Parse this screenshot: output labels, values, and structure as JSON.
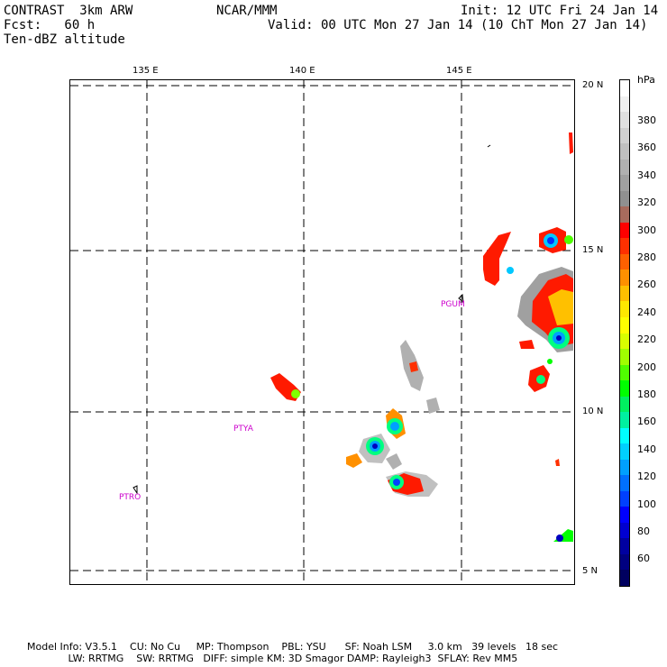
{
  "header": {
    "model_line": "CONTRAST  3km ARW",
    "org": "NCAR/MMM",
    "init": "Init: 12 UTC Fri 24 Jan 14",
    "fcst": "Fcst:   60 h",
    "valid": "Valid: 00 UTC Mon 27 Jan 14 (10 ChT Mon 27 Jan 14)",
    "field": "Ten-dBZ altitude"
  },
  "map": {
    "lon_labels": [
      "135 E",
      "140 E",
      "145 E"
    ],
    "lat_labels": [
      "20 N",
      "15 N",
      "10 N",
      "5 N"
    ],
    "lon_values": [
      135,
      140,
      145
    ],
    "lat_values": [
      20,
      15,
      10,
      5
    ],
    "stations": [
      {
        "name": "PGUM",
        "lon": 144.8,
        "lat": 13.5
      },
      {
        "name": "PTYA",
        "lon": 138.1,
        "lat": 9.5
      },
      {
        "name": "PTRO",
        "lon": 134.5,
        "lat": 7.4
      }
    ],
    "echo_cells": [
      {
        "lon": 148.6,
        "lat": 18.4,
        "peak_hPa": 280,
        "label": "north-edge cell"
      },
      {
        "lon": 146.3,
        "lat": 14.7,
        "peak_hPa": 300,
        "label": "band near 15N"
      },
      {
        "lon": 147.8,
        "lat": 15.2,
        "peak_hPa": 140,
        "label": "convective core 15N"
      },
      {
        "lon": 147.9,
        "lat": 13.2,
        "peak_hPa": 260,
        "label": "large complex east of Guam"
      },
      {
        "lon": 147.8,
        "lat": 12.3,
        "peak_hPa": 120,
        "label": "deep core east of Guam"
      },
      {
        "lon": 146.8,
        "lat": 11.0,
        "peak_hPa": 170,
        "label": "cell near 11N"
      },
      {
        "lon": 139.3,
        "lat": 10.8,
        "peak_hPa": 190,
        "label": "cell west"
      },
      {
        "lon": 143.0,
        "lat": 11.5,
        "peak_hPa": 340,
        "label": "shallow gray band"
      },
      {
        "lon": 142.7,
        "lat": 9.5,
        "peak_hPa": 130,
        "label": "cell near 9.5N"
      },
      {
        "lon": 142.1,
        "lat": 9.0,
        "peak_hPa": 120,
        "label": "cell near 9N"
      },
      {
        "lon": 143.0,
        "lat": 7.8,
        "peak_hPa": 110,
        "label": "cell near 8N"
      },
      {
        "lon": 146.2,
        "lat": 6.2,
        "peak_hPa": 90,
        "label": "cell near 6N"
      }
    ]
  },
  "colorbar": {
    "unit": "hPa",
    "labels": [
      "380",
      "360",
      "340",
      "320",
      "300",
      "280",
      "260",
      "240",
      "220",
      "200",
      "180",
      "160",
      "140",
      "120",
      "100",
      "80",
      "60"
    ],
    "colors": [
      "#ffffff",
      "#f0f0f0",
      "#e0e0e0",
      "#d0d0d0",
      "#c0c0c0",
      "#b0b0b0",
      "#a0a0a0",
      "#909090",
      "#a86b5d",
      "#ff0000",
      "#ff3000",
      "#ff6000",
      "#ff9000",
      "#ffc000",
      "#ffe800",
      "#ffff00",
      "#d8ff00",
      "#a0ff00",
      "#50ff00",
      "#00ff00",
      "#00f060",
      "#00f0a0",
      "#00ffff",
      "#00d0ff",
      "#00a0ff",
      "#0070ff",
      "#0040ff",
      "#0000ff",
      "#0000d0",
      "#0000a0",
      "#000080",
      "#000060"
    ]
  },
  "footer": {
    "line1": "Model Info: V3.5.1    CU: No Cu     MP: Thompson    PBL: YSU      SF: Noah LSM     3.0 km   39 levels   18 sec",
    "line2": "             LW: RRTMG    SW: RRTMG   DIFF: simple KM: 3D Smagor DAMP: Rayleigh3  SFLAY: Rev MM5"
  }
}
